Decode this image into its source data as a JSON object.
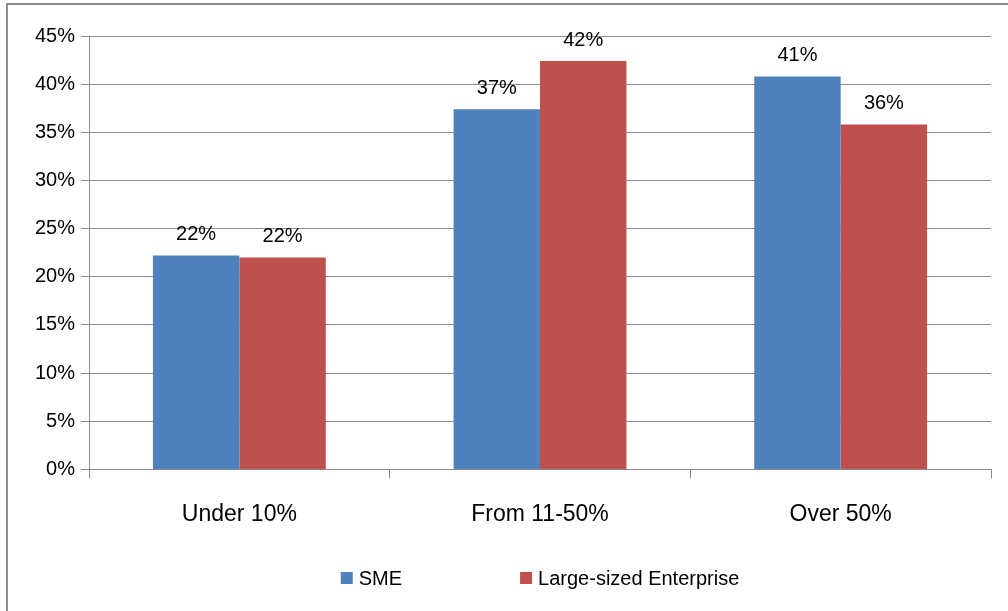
{
  "chart_data": {
    "type": "bar",
    "categories": [
      "Under 10%",
      "From 11-50%",
      "Over 50%"
    ],
    "series": [
      {
        "name": "SME",
        "color": "#4f81bd",
        "values": [
          22.2,
          37.4,
          40.8
        ],
        "value_labels": [
          "22%",
          "37%",
          "41%"
        ]
      },
      {
        "name": "Large-sized Enterprise",
        "color": "#c0504d",
        "values": [
          22.0,
          42.4,
          35.8
        ],
        "value_labels": [
          "22%",
          "42%",
          "36%"
        ]
      }
    ],
    "ylim": [
      0,
      45
    ],
    "yticks": [
      {
        "value": 0,
        "label": "0%"
      },
      {
        "value": 5,
        "label": "5%"
      },
      {
        "value": 10,
        "label": "10%"
      },
      {
        "value": 15,
        "label": "15%"
      },
      {
        "value": 20,
        "label": "20%"
      },
      {
        "value": 25,
        "label": "25%"
      },
      {
        "value": 30,
        "label": "30%"
      },
      {
        "value": 35,
        "label": "35%"
      },
      {
        "value": 40,
        "label": "40%"
      },
      {
        "value": 45,
        "label": "45%"
      }
    ],
    "grid": "y",
    "legend": "bottom"
  }
}
